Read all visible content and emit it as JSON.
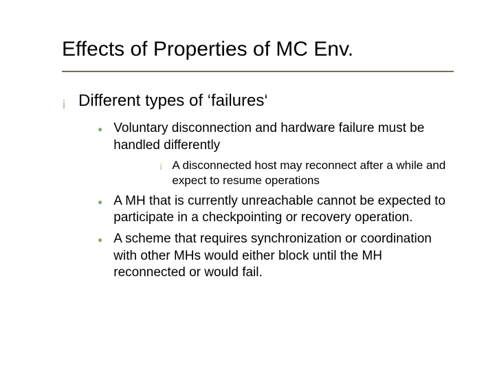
{
  "title": "Effects of Properties of MC  Env.",
  "level1": {
    "bullet_glyph": "¡",
    "text": "Different types of ‘failures‘"
  },
  "level2_bullet_glyph": "●",
  "level3_bullet_glyph": "¡",
  "items": [
    {
      "text": "Voluntary disconnection and hardware failure must be handled differently",
      "sub": [
        "A disconnected host may reconnect after a while and expect to resume operations"
      ]
    },
    {
      "text": " A MH that is currently unreachable cannot be expected to participate in a checkpointing or recovery operation.",
      "sub": []
    },
    {
      "text": "A scheme that requires synchronization or coordination with other MHs would either block until the MH reconnected or would fail.",
      "sub": []
    }
  ],
  "colors": {
    "title_underline": "#7a6a4f",
    "circle_bullet": "#bfa874",
    "dot_bullet": "#8aa870",
    "text": "#000000",
    "background": "#ffffff"
  },
  "fonts": {
    "family": "Verdana",
    "title_size_pt": 30,
    "level1_size_pt": 24,
    "level2_size_pt": 19,
    "level3_size_pt": 17
  }
}
